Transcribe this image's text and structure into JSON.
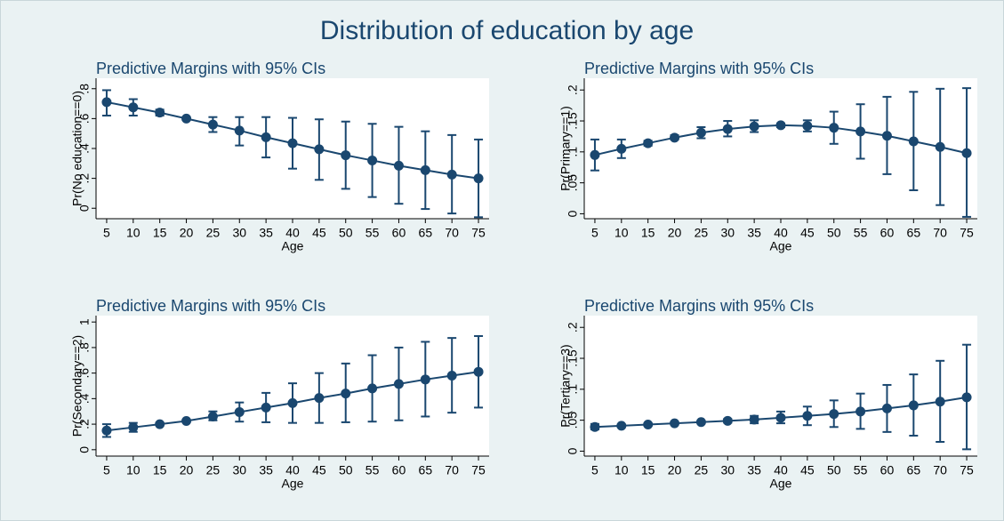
{
  "title": "Distribution of education by age",
  "chart_data": [
    {
      "type": "errorbar",
      "title": "Predictive Margins with 95% CIs",
      "xlabel": "Age",
      "ylabel": "Pr(No education==0)",
      "color": "#1a476f",
      "x": [
        5,
        10,
        15,
        20,
        25,
        30,
        35,
        40,
        45,
        50,
        55,
        60,
        65,
        70,
        75
      ],
      "values": [
        0.71,
        0.675,
        0.64,
        0.6,
        0.56,
        0.52,
        0.475,
        0.435,
        0.395,
        0.355,
        0.32,
        0.285,
        0.255,
        0.225,
        0.2
      ],
      "ci_low": [
        0.62,
        0.62,
        0.62,
        0.59,
        0.51,
        0.42,
        0.34,
        0.265,
        0.19,
        0.13,
        0.075,
        0.03,
        -0.005,
        -0.035,
        -0.06
      ],
      "ci_high": [
        0.79,
        0.73,
        0.66,
        0.61,
        0.61,
        0.61,
        0.61,
        0.605,
        0.595,
        0.58,
        0.565,
        0.545,
        0.515,
        0.49,
        0.46
      ],
      "xlim": [
        3,
        77
      ],
      "xticks": [
        5,
        10,
        15,
        20,
        25,
        30,
        35,
        40,
        45,
        50,
        55,
        60,
        65,
        70,
        75
      ],
      "ylim": [
        -0.07,
        0.87
      ],
      "yticks": [
        0,
        {
          "value": 0.2,
          "label": ".2"
        },
        {
          "value": 0.4,
          "label": ".4"
        },
        {
          "value": 0.6,
          "label": ".6"
        },
        {
          "value": 0.8,
          "label": ".8"
        }
      ]
    },
    {
      "type": "errorbar",
      "title": "Predictive Margins with 95% CIs",
      "xlabel": "Age",
      "ylabel": "Pr(Primary==1)",
      "color": "#1a476f",
      "x": [
        5,
        10,
        15,
        20,
        25,
        30,
        35,
        40,
        45,
        50,
        55,
        60,
        65,
        70,
        75
      ],
      "values": [
        0.095,
        0.105,
        0.114,
        0.123,
        0.131,
        0.137,
        0.141,
        0.143,
        0.142,
        0.139,
        0.133,
        0.126,
        0.117,
        0.108,
        0.098
      ],
      "ci_low": [
        0.07,
        0.09,
        0.11,
        0.12,
        0.122,
        0.125,
        0.132,
        0.14,
        0.133,
        0.113,
        0.089,
        0.064,
        0.038,
        0.014,
        -0.005
      ],
      "ci_high": [
        0.12,
        0.12,
        0.118,
        0.127,
        0.14,
        0.15,
        0.151,
        0.146,
        0.151,
        0.165,
        0.177,
        0.189,
        0.197,
        0.202,
        0.203
      ],
      "xlim": [
        3,
        77
      ],
      "xticks": [
        5,
        10,
        15,
        20,
        25,
        30,
        35,
        40,
        45,
        50,
        55,
        60,
        65,
        70,
        75
      ],
      "ylim": [
        -0.008,
        0.219
      ],
      "yticks": [
        0,
        {
          "value": 0.05,
          "label": ".05"
        },
        {
          "value": 0.1,
          "label": ".1"
        },
        {
          "value": 0.15,
          "label": ".15"
        },
        {
          "value": 0.2,
          "label": ".2"
        }
      ]
    },
    {
      "type": "errorbar",
      "title": "Predictive Margins with 95% CIs",
      "xlabel": "Age",
      "ylabel": "Pr(Secondary==2)",
      "color": "#1a476f",
      "x": [
        5,
        10,
        15,
        20,
        25,
        30,
        35,
        40,
        45,
        50,
        55,
        60,
        65,
        70,
        75
      ],
      "values": [
        0.15,
        0.175,
        0.2,
        0.225,
        0.26,
        0.295,
        0.33,
        0.365,
        0.405,
        0.44,
        0.48,
        0.515,
        0.55,
        0.58,
        0.61
      ],
      "ci_low": [
        0.1,
        0.14,
        0.19,
        0.215,
        0.23,
        0.22,
        0.215,
        0.21,
        0.21,
        0.215,
        0.22,
        0.23,
        0.26,
        0.29,
        0.33
      ],
      "ci_high": [
        0.2,
        0.21,
        0.21,
        0.235,
        0.3,
        0.37,
        0.445,
        0.52,
        0.6,
        0.675,
        0.74,
        0.8,
        0.845,
        0.875,
        0.89
      ],
      "xlim": [
        3,
        77
      ],
      "xticks": [
        5,
        10,
        15,
        20,
        25,
        30,
        35,
        40,
        45,
        50,
        55,
        60,
        65,
        70,
        75
      ],
      "ylim": [
        -0.05,
        1.05
      ],
      "yticks": [
        0,
        {
          "value": 0.2,
          "label": ".2"
        },
        {
          "value": 0.4,
          "label": ".4"
        },
        {
          "value": 0.6,
          "label": ".6"
        },
        {
          "value": 0.8,
          "label": ".8"
        },
        1
      ]
    },
    {
      "type": "errorbar",
      "title": "Predictive Margins with 95% CIs",
      "xlabel": "Age",
      "ylabel": "Pr(Tertiary==3)",
      "color": "#1a476f",
      "x": [
        5,
        10,
        15,
        20,
        25,
        30,
        35,
        40,
        45,
        50,
        55,
        60,
        65,
        70,
        75
      ],
      "values": [
        0.039,
        0.041,
        0.043,
        0.045,
        0.047,
        0.049,
        0.051,
        0.054,
        0.057,
        0.06,
        0.064,
        0.069,
        0.074,
        0.08,
        0.087
      ],
      "ci_low": [
        0.035,
        0.039,
        0.041,
        0.043,
        0.045,
        0.046,
        0.045,
        0.045,
        0.042,
        0.039,
        0.036,
        0.031,
        0.025,
        0.015,
        0.003
      ],
      "ci_high": [
        0.044,
        0.043,
        0.045,
        0.047,
        0.049,
        0.052,
        0.057,
        0.064,
        0.072,
        0.082,
        0.093,
        0.107,
        0.124,
        0.146,
        0.172
      ],
      "xlim": [
        3,
        77
      ],
      "xticks": [
        5,
        10,
        15,
        20,
        25,
        30,
        35,
        40,
        45,
        50,
        55,
        60,
        65,
        70,
        75
      ],
      "ylim": [
        -0.008,
        0.219
      ],
      "yticks": [
        0,
        {
          "value": 0.05,
          "label": ".05"
        },
        {
          "value": 0.1,
          "label": ".1"
        },
        {
          "value": 0.15,
          "label": ".15"
        },
        {
          "value": 0.2,
          "label": ".2"
        }
      ]
    }
  ]
}
